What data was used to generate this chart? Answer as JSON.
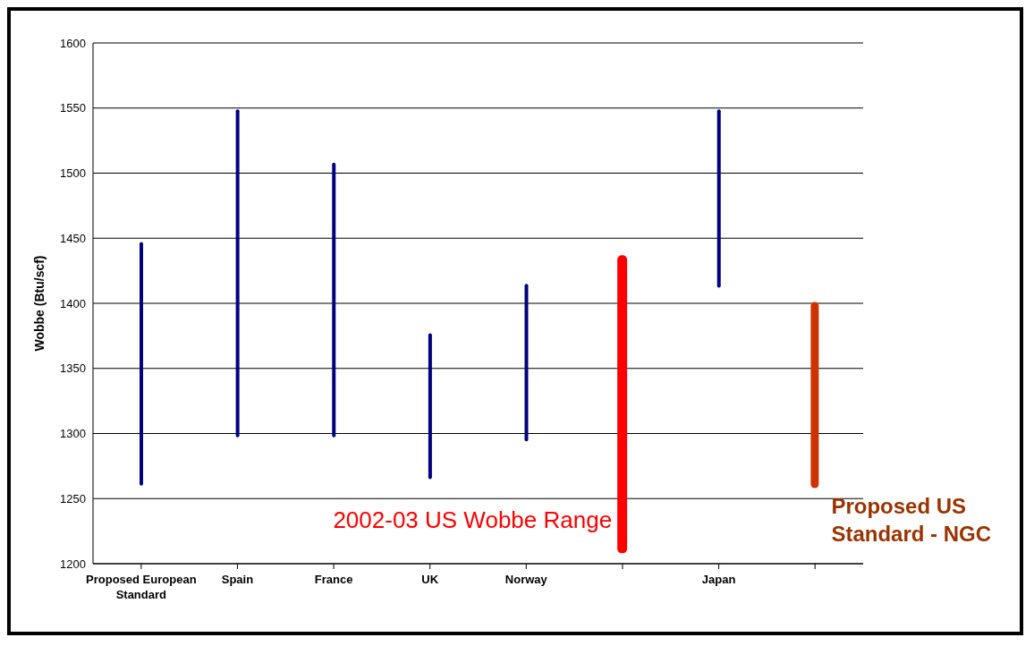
{
  "chart_data": {
    "type": "bar",
    "ylabel": "Wobbe (Btu/scf)",
    "categories": [
      "Proposed European Standard",
      "Spain",
      "France",
      "UK",
      "Norway",
      null,
      "Japan",
      null
    ],
    "series": [
      {
        "color": "#000080",
        "base": [
          1260,
          1297,
          1297,
          1265,
          1294,
          null,
          1412,
          null
        ],
        "values": [
          187,
          252,
          211,
          112,
          121,
          null,
          137,
          null
        ]
      },
      {
        "name": "2002-03 US Wobbe Range",
        "color": "#ff0000",
        "base": [
          null,
          null,
          null,
          null,
          null,
          1208,
          null,
          null
        ],
        "values": [
          null,
          null,
          null,
          null,
          null,
          229,
          null,
          null
        ]
      },
      {
        "name": "Proposed US Standard - NGC",
        "color": "#cc3300",
        "base": [
          null,
          null,
          null,
          null,
          null,
          null,
          null,
          1258
        ],
        "values": [
          null,
          null,
          null,
          null,
          null,
          null,
          null,
          143
        ]
      }
    ],
    "ylim": [
      1200,
      1600
    ],
    "yticks": [
      1200,
      1250,
      1300,
      1350,
      1400,
      1450,
      1500,
      1550,
      1600
    ],
    "grid": "y"
  }
}
